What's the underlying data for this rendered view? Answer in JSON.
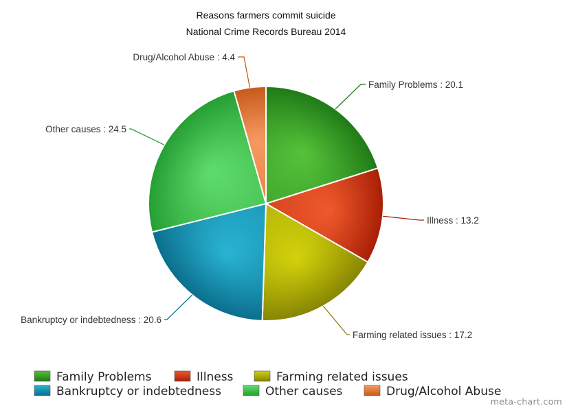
{
  "chart_data": {
    "type": "pie",
    "title": "Reasons farmers commit suicide",
    "subtitle": "National Crime Records Bureau 2014",
    "slices": [
      {
        "name": "Family Problems",
        "value": 20.1,
        "label": "Family Problems : 20.1",
        "color": "#2f9a22",
        "light": "#55c23a",
        "dark": "#1f7a16"
      },
      {
        "name": "Illness",
        "value": 13.2,
        "label": "Illness : 13.2",
        "color": "#d8360f",
        "light": "#ef5a2c",
        "dark": "#a81e06"
      },
      {
        "name": "Farming related issues",
        "value": 17.2,
        "label": "Farming related issues : 17.2",
        "color": "#b3b305",
        "light": "#d2d10c",
        "dark": "#868503"
      },
      {
        "name": "Bankruptcy or indebtedness",
        "value": 20.6,
        "label": "Bankruptcy or indebtedness : 20.6",
        "color": "#1a96b8",
        "light": "#29b3d3",
        "dark": "#0b6e8c"
      },
      {
        "name": "Other causes",
        "value": 24.5,
        "label": "Other causes : 24.5",
        "color": "#3cc04a",
        "light": "#5fdd6c",
        "dark": "#259e33"
      },
      {
        "name": "Drug/Alcohol Abuse",
        "value": 4.4,
        "label": "Drug/Alcohol Abuse : 4.4",
        "color": "#e8783a",
        "light": "#f79a60",
        "dark": "#c65a1c"
      }
    ],
    "start_angle": "12 o'clock",
    "direction": "clockwise",
    "legend_position": "bottom"
  },
  "watermark": "meta-chart.com"
}
